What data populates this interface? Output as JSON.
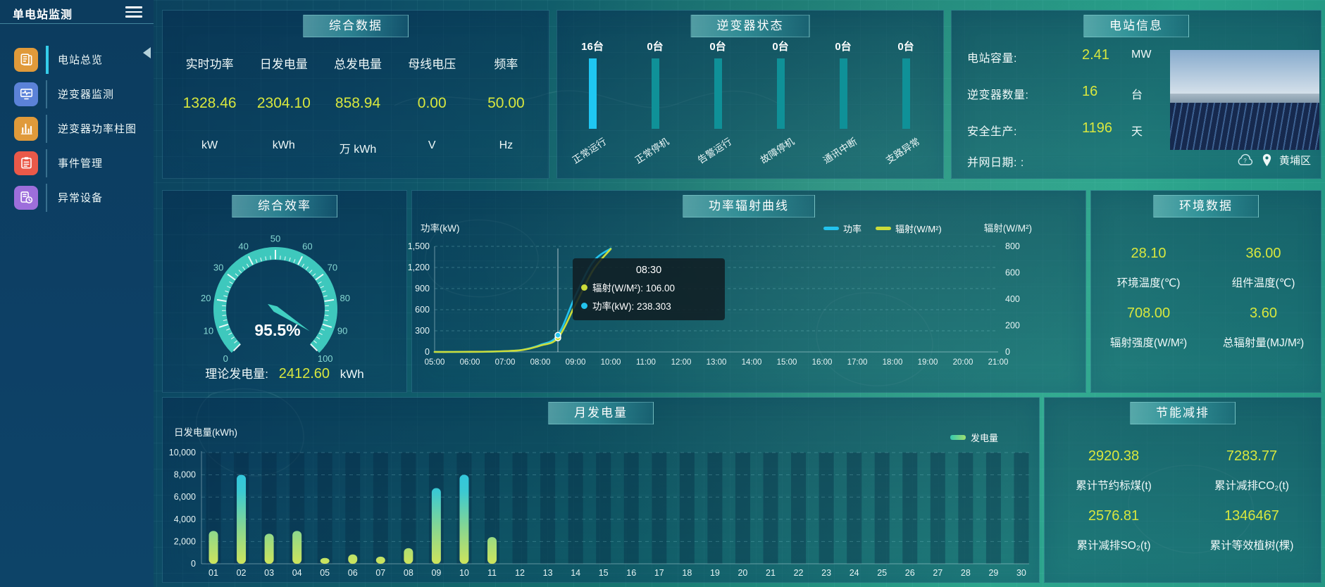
{
  "app": {
    "title": "单电站监测"
  },
  "colors": {
    "value_yellow": "#d8e73e",
    "inverter_bar_active": "#1fc7f2",
    "inverter_bar_idle": "#0f9198",
    "line_power": "#23c3ee",
    "line_radiation": "#cbdc3a",
    "gauge": "#41d0c2"
  },
  "sidebar": {
    "items": [
      {
        "label": "电站总览",
        "icon": "station-overview",
        "color": "#e09a3a",
        "active": true
      },
      {
        "label": "逆变器监测",
        "icon": "inverter-monitor",
        "color": "#5b82d8",
        "active": false
      },
      {
        "label": "逆变器功率柱图",
        "icon": "inverter-power-chart",
        "color": "#e09a3a",
        "active": false
      },
      {
        "label": "事件管理",
        "icon": "event-management",
        "color": "#ea5949",
        "active": false
      },
      {
        "label": "异常设备",
        "icon": "abnormal-device",
        "color": "#9d6edb",
        "active": false
      }
    ]
  },
  "summary": {
    "title": "综合数据",
    "metrics": [
      {
        "label": "实时功率",
        "value": "1328.46",
        "unit": "kW"
      },
      {
        "label": "日发电量",
        "value": "2304.10",
        "unit": "kWh"
      },
      {
        "label": "总发电量",
        "value": "858.94",
        "unit": "万 kWh"
      },
      {
        "label": "母线电压",
        "value": "0.00",
        "unit": "V"
      },
      {
        "label": "频率",
        "value": "50.00",
        "unit": "Hz"
      }
    ]
  },
  "inverter_status": {
    "title": "逆变器状态",
    "items": [
      {
        "count": "16台",
        "label": "正常运行",
        "highlight": true
      },
      {
        "count": "0台",
        "label": "正常停机",
        "highlight": false
      },
      {
        "count": "0台",
        "label": "告警运行",
        "highlight": false
      },
      {
        "count": "0台",
        "label": "故障停机",
        "highlight": false
      },
      {
        "count": "0台",
        "label": "通讯中断",
        "highlight": false
      },
      {
        "count": "0台",
        "label": "支路异常",
        "highlight": false
      }
    ]
  },
  "station_info": {
    "title": "电站信息",
    "rows": [
      {
        "label": "电站容量:",
        "value": "2.41",
        "unit": "MW"
      },
      {
        "label": "逆变器数量:",
        "value": "16",
        "unit": "台"
      },
      {
        "label": "安全生产:",
        "value": "1196",
        "unit": "天"
      },
      {
        "label": "并网日期: :",
        "value": "",
        "unit": ""
      }
    ],
    "location": "黄埔区"
  },
  "efficiency": {
    "title": "综合效率",
    "display": "95.5%",
    "theory_label": "理论发电量:",
    "theory_value": "2412.60",
    "theory_unit": "kWh"
  },
  "environment": {
    "title": "环境数据",
    "items": [
      {
        "value": "28.10",
        "label": "环境温度(℃)"
      },
      {
        "value": "36.00",
        "label": "组件温度(℃)"
      },
      {
        "value": "708.00",
        "label": "辐射强度(W/M²)"
      },
      {
        "value": "3.60",
        "label": "总辐射量(MJ/M²)"
      }
    ]
  },
  "saving": {
    "title": "节能减排",
    "items": [
      {
        "value": "2920.38",
        "label": "累计节约标煤(t)"
      },
      {
        "value": "7283.77",
        "label": "累计减排CO₂(t)"
      },
      {
        "value": "2576.81",
        "label": "累计减排SO₂(t)"
      },
      {
        "value": "1346467",
        "label": "累计等效植树(棵)"
      }
    ]
  },
  "chart_data": [
    {
      "id": "power-radiation",
      "type": "line",
      "title": "功率辐射曲线",
      "x": [
        "05:00",
        "05:30",
        "06:00",
        "06:30",
        "07:00",
        "07:30",
        "08:00",
        "08:30",
        "09:00",
        "09:30",
        "10:00"
      ],
      "x_axis_labels": [
        "05:00",
        "06:00",
        "07:00",
        "08:00",
        "09:00",
        "10:00",
        "11:00",
        "12:00",
        "13:00",
        "14:00",
        "15:00",
        "16:00",
        "17:00",
        "18:00",
        "19:00",
        "20:00",
        "21:00"
      ],
      "series": [
        {
          "name": "功率",
          "axis": "left",
          "color": "#23c3ee",
          "values": [
            0,
            0,
            1,
            3,
            10,
            30,
            100,
            238.303,
            800,
            1280,
            1470
          ]
        },
        {
          "name": "辐射(W/M²)",
          "axis": "right",
          "color": "#cbdc3a",
          "values": [
            0,
            0,
            1,
            2,
            6,
            15,
            48,
            106,
            360,
            620,
            780
          ]
        }
      ],
      "left_axis": {
        "label": "功率(kW)",
        "min": 0,
        "max": 1500,
        "ticks": [
          "1,500",
          "1,200",
          "900",
          "600",
          "300",
          "0"
        ],
        "tick_values": [
          1500,
          1200,
          900,
          600,
          300,
          0
        ]
      },
      "right_axis": {
        "label": "辐射(W/M²)",
        "min": 0,
        "max": 800,
        "ticks": [
          "800",
          "600",
          "400",
          "200",
          "0"
        ],
        "tick_values": [
          800,
          600,
          400,
          200,
          0
        ]
      },
      "legend_position": "top-right",
      "grid": "horizontal-dashed",
      "tooltip": {
        "time": "08:30",
        "rows": [
          {
            "name": "辐射(W/M²)",
            "value": "106.00",
            "color": "#cbdc3a"
          },
          {
            "name": "功率(kW)",
            "value": "238.303",
            "color": "#23c3ee"
          }
        ]
      }
    },
    {
      "id": "monthly-generation",
      "type": "bar",
      "title": "月发电量",
      "ylabel": "日发电量(kWh)",
      "legend": "发电量",
      "categories": [
        "01",
        "02",
        "03",
        "04",
        "05",
        "06",
        "07",
        "08",
        "09",
        "10",
        "11",
        "12",
        "13",
        "14",
        "15",
        "16",
        "17",
        "18",
        "19",
        "20",
        "21",
        "22",
        "23",
        "24",
        "25",
        "26",
        "27",
        "28",
        "29",
        "30"
      ],
      "values": [
        2950,
        8000,
        2700,
        2950,
        520,
        840,
        640,
        1400,
        6800,
        8000,
        2400,
        0,
        0,
        0,
        0,
        0,
        0,
        0,
        0,
        0,
        0,
        0,
        0,
        0,
        0,
        0,
        0,
        0,
        0,
        0
      ],
      "ylim": [
        0,
        10000
      ],
      "yticks": [
        "10,000",
        "8,000",
        "6,000",
        "4,000",
        "2,000",
        "0"
      ],
      "ytick_values": [
        10000,
        8000,
        6000,
        4000,
        2000,
        0
      ],
      "grid": "horizontal-dashed"
    },
    {
      "id": "efficiency-gauge",
      "type": "gauge",
      "title": "综合效率",
      "value": 95.5,
      "min": 0,
      "max": 100,
      "label": "95.5%"
    }
  ]
}
